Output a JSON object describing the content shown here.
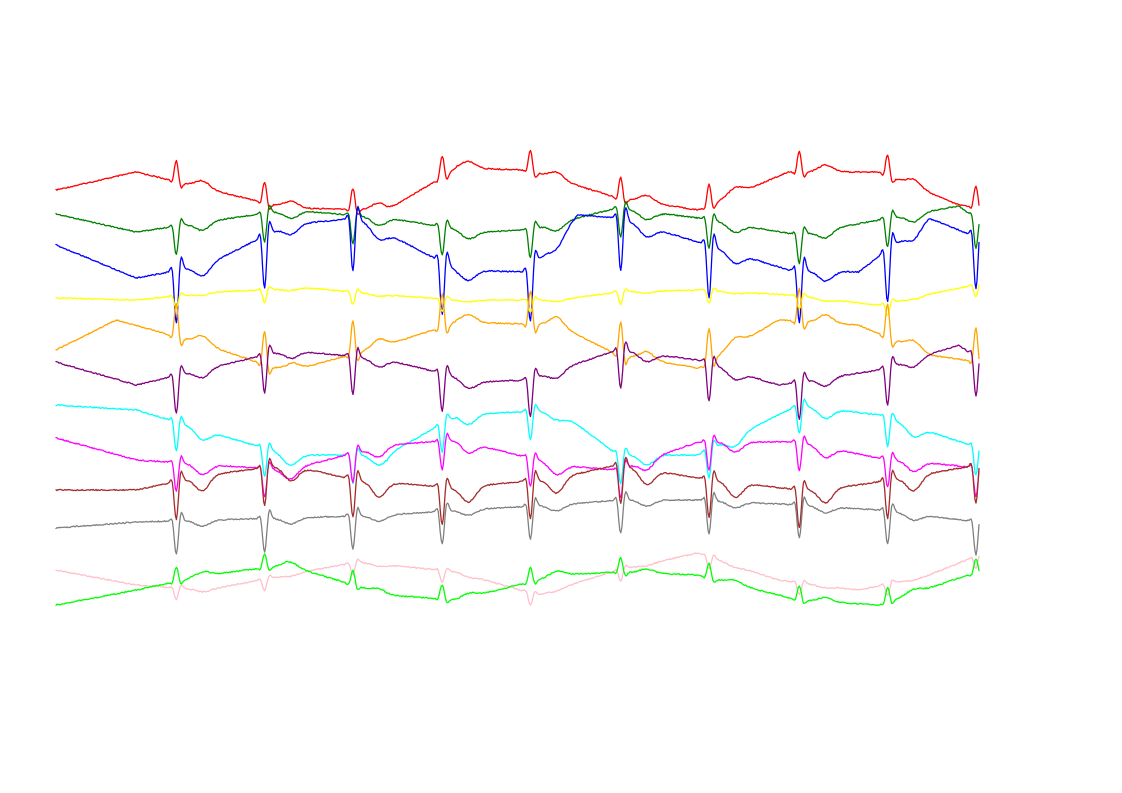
{
  "chart_data": {
    "type": "line",
    "title": "",
    "xlabel": "",
    "ylabel": "",
    "grid": false,
    "legend": "none",
    "axes_visible": false,
    "x_range": [
      0,
      920
    ],
    "beats": [
      120,
      208,
      296,
      385,
      473,
      563,
      651,
      741,
      829,
      917
    ],
    "series": [
      {
        "color": "#ff0000",
        "polarity": 1.0,
        "qrs_amp": 22,
        "t_amp": 7,
        "baseline": [
          [
            0,
            190
          ],
          [
            80,
            172
          ],
          [
            230,
            208
          ],
          [
            330,
            210
          ],
          [
            400,
            168
          ],
          [
            470,
            170
          ],
          [
            560,
            198
          ],
          [
            640,
            210
          ],
          [
            730,
            172
          ],
          [
            820,
            172
          ],
          [
            900,
            205
          ],
          [
            920,
            207
          ]
        ]
      },
      {
        "color": "#008000",
        "polarity": -1.0,
        "qrs_amp": 30,
        "t_amp": 8,
        "baseline": [
          [
            0,
            214
          ],
          [
            80,
            232
          ],
          [
            230,
            210
          ],
          [
            330,
            218
          ],
          [
            420,
            232
          ],
          [
            470,
            230
          ],
          [
            560,
            208
          ],
          [
            640,
            218
          ],
          [
            740,
            235
          ],
          [
            820,
            220
          ],
          [
            900,
            206
          ],
          [
            920,
            222
          ]
        ]
      },
      {
        "color": "#0000ff",
        "polarity": -1.0,
        "qrs_amp": 55,
        "t_amp": 10,
        "baseline": [
          [
            0,
            245
          ],
          [
            80,
            278
          ],
          [
            150,
            265
          ],
          [
            230,
            225
          ],
          [
            300,
            218
          ],
          [
            400,
            270
          ],
          [
            470,
            272
          ],
          [
            520,
            215
          ],
          [
            560,
            218
          ],
          [
            640,
            242
          ],
          [
            730,
            270
          ],
          [
            800,
            272
          ],
          [
            870,
            218
          ],
          [
            920,
            238
          ]
        ]
      },
      {
        "color": "#ffff00",
        "polarity": -0.6,
        "qrs_amp": 22,
        "t_amp": 3,
        "baseline": [
          [
            0,
            298
          ],
          [
            80,
            300
          ],
          [
            160,
            292
          ],
          [
            250,
            288
          ],
          [
            330,
            295
          ],
          [
            400,
            300
          ],
          [
            500,
            300
          ],
          [
            560,
            292
          ],
          [
            640,
            290
          ],
          [
            730,
            295
          ],
          [
            820,
            305
          ],
          [
            920,
            284
          ]
        ]
      },
      {
        "color": "#ffa500",
        "polarity": 1.0,
        "qrs_amp": 35,
        "t_amp": 8,
        "baseline": [
          [
            0,
            350
          ],
          [
            60,
            320
          ],
          [
            150,
            345
          ],
          [
            230,
            372
          ],
          [
            330,
            345
          ],
          [
            400,
            322
          ],
          [
            500,
            325
          ],
          [
            560,
            355
          ],
          [
            640,
            368
          ],
          [
            720,
            320
          ],
          [
            800,
            325
          ],
          [
            870,
            355
          ],
          [
            920,
            362
          ]
        ]
      },
      {
        "color": "#800080",
        "polarity": -1.0,
        "qrs_amp": 40,
        "t_amp": 8,
        "baseline": [
          [
            0,
            362
          ],
          [
            80,
            385
          ],
          [
            230,
            350
          ],
          [
            330,
            360
          ],
          [
            420,
            382
          ],
          [
            470,
            380
          ],
          [
            560,
            350
          ],
          [
            640,
            360
          ],
          [
            720,
            385
          ],
          [
            820,
            370
          ],
          [
            900,
            345
          ],
          [
            920,
            360
          ]
        ]
      },
      {
        "color": "#00ffff",
        "polarity": -1.0,
        "qrs_amp": 30,
        "t_amp": 10,
        "baseline": [
          [
            0,
            405
          ],
          [
            80,
            410
          ],
          [
            230,
            455
          ],
          [
            330,
            455
          ],
          [
            400,
            415
          ],
          [
            500,
            410
          ],
          [
            560,
            455
          ],
          [
            640,
            455
          ],
          [
            740,
            405
          ],
          [
            820,
            415
          ],
          [
            920,
            448
          ]
        ]
      },
      {
        "color": "#ff00ff",
        "polarity": -1.0,
        "qrs_amp": 30,
        "t_amp": 10,
        "baseline": [
          [
            0,
            438
          ],
          [
            80,
            460
          ],
          [
            230,
            470
          ],
          [
            330,
            445
          ],
          [
            400,
            440
          ],
          [
            500,
            465
          ],
          [
            560,
            470
          ],
          [
            640,
            442
          ],
          [
            740,
            442
          ],
          [
            820,
            458
          ],
          [
            920,
            468
          ]
        ]
      },
      {
        "color": "#a52a2a",
        "polarity": -1.0,
        "qrs_amp": 40,
        "t_amp": 15,
        "baseline": [
          [
            0,
            490
          ],
          [
            80,
            490
          ],
          [
            150,
            475
          ],
          [
            230,
            465
          ],
          [
            300,
            480
          ],
          [
            400,
            488
          ],
          [
            500,
            478
          ],
          [
            560,
            465
          ],
          [
            640,
            478
          ],
          [
            740,
            490
          ],
          [
            800,
            485
          ],
          [
            920,
            465
          ]
        ]
      },
      {
        "color": "#808080",
        "polarity": -1.0,
        "qrs_amp": 35,
        "t_amp": 6,
        "baseline": [
          [
            0,
            528
          ],
          [
            80,
            522
          ],
          [
            230,
            518
          ],
          [
            330,
            515
          ],
          [
            400,
            510
          ],
          [
            500,
            505
          ],
          [
            560,
            500
          ],
          [
            640,
            500
          ],
          [
            740,
            505
          ],
          [
            820,
            510
          ],
          [
            920,
            522
          ]
        ]
      },
      {
        "color": "#ffc0cb",
        "polarity": -0.5,
        "qrs_amp": 25,
        "t_amp": 4,
        "baseline": [
          [
            0,
            570
          ],
          [
            80,
            585
          ],
          [
            150,
            590
          ],
          [
            230,
            575
          ],
          [
            300,
            562
          ],
          [
            400,
            572
          ],
          [
            480,
            595
          ],
          [
            560,
            570
          ],
          [
            640,
            553
          ],
          [
            720,
            580
          ],
          [
            800,
            590
          ],
          [
            870,
            575
          ],
          [
            920,
            555
          ]
        ]
      },
      {
        "color": "#00ff00",
        "polarity": 1.0,
        "qrs_amp": 15,
        "t_amp": 4,
        "baseline": [
          [
            0,
            605
          ],
          [
            80,
            590
          ],
          [
            150,
            575
          ],
          [
            230,
            565
          ],
          [
            330,
            595
          ],
          [
            400,
            600
          ],
          [
            500,
            575
          ],
          [
            560,
            572
          ],
          [
            640,
            575
          ],
          [
            740,
            600
          ],
          [
            820,
            605
          ],
          [
            900,
            578
          ],
          [
            920,
            572
          ]
        ]
      }
    ]
  }
}
